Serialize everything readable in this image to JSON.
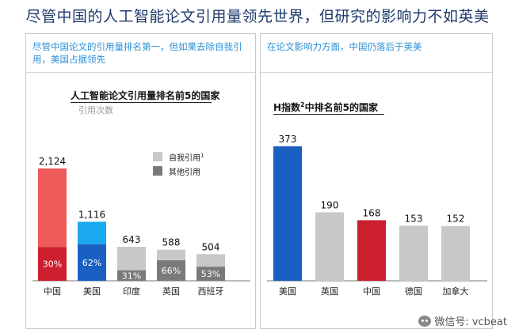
{
  "main_title": "尽管中国的人工智能论文引用量领先世界，但研究的影响力不如英美",
  "left_panel": {
    "header": "尽管中国论文的引用量排名第一，但如果去除自我引用，美国占据领先",
    "legend": [
      {
        "name": "自我引用",
        "sup": "1",
        "color": "#c8c8c8"
      },
      {
        "name": "其他引用",
        "sup": "",
        "color": "#7a7a7a"
      }
    ]
  },
  "right_panel": {
    "header": "在论文影响力方面，中国仍落后于英美"
  },
  "watermark": {
    "text": "微信号: vcbeat",
    "icon": "wechat-icon"
  },
  "chart_data": [
    {
      "type": "bar",
      "stacked": true,
      "title": "人工智能论文引用量排名前5的国家",
      "subtitle": "引用次数",
      "categories": [
        "中国",
        "美国",
        "印度",
        "英国",
        "西班牙"
      ],
      "totals": [
        2124,
        1116,
        643,
        588,
        504
      ],
      "total_labels": [
        "2,124",
        "1,116",
        "643",
        "588",
        "504"
      ],
      "other_citation_share_pct": [
        30,
        62,
        31,
        66,
        53
      ],
      "share_labels": [
        "30%",
        "62%",
        "31%",
        "66%",
        "53%"
      ],
      "colors": {
        "self": [
          "#ef5a5a",
          "#1aa8ee",
          "#c8c8c8",
          "#c8c8c8",
          "#c8c8c8"
        ],
        "other": [
          "#cc1f2f",
          "#1a5fc2",
          "#7a7a7a",
          "#7a7a7a",
          "#7a7a7a"
        ]
      },
      "ylim": [
        0,
        2124
      ],
      "grid": false
    },
    {
      "type": "bar",
      "title_prefix": "H指数",
      "title_sup": "2",
      "title_suffix": "中排名前5的国家",
      "categories": [
        "美国",
        "英国",
        "中国",
        "德国",
        "加拿大"
      ],
      "values": [
        373,
        190,
        168,
        153,
        152
      ],
      "value_labels": [
        "373",
        "190",
        "168",
        "153",
        "152"
      ],
      "colors": [
        "#1a5fc2",
        "#c8c8c8",
        "#cc1f2f",
        "#c8c8c8",
        "#c8c8c8"
      ],
      "ylim": [
        0,
        373
      ],
      "grid": false
    }
  ]
}
